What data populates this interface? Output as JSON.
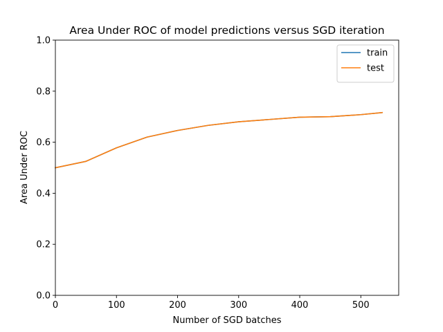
{
  "chart_data": {
    "type": "line",
    "title": "Area Under ROC of model predictions versus SGD iteration",
    "xlabel": "Number of SGD batches",
    "ylabel": "Area Under ROC",
    "xlim": [
      0,
      562
    ],
    "ylim": [
      0.0,
      1.0
    ],
    "xticks": [
      0,
      100,
      200,
      300,
      400,
      500
    ],
    "yticks": [
      0.0,
      0.2,
      0.4,
      0.6,
      0.8,
      1.0
    ],
    "xtick_labels": [
      "0",
      "100",
      "200",
      "300",
      "400",
      "500"
    ],
    "ytick_labels": [
      "0.0",
      "0.2",
      "0.4",
      "0.6",
      "0.8",
      "1.0"
    ],
    "grid": false,
    "legend_position": "top-right",
    "series": [
      {
        "name": "train",
        "color": "#1f77b4",
        "x": [
          0,
          50,
          100,
          150,
          200,
          250,
          300,
          350,
          400,
          450,
          500,
          535
        ],
        "y": [
          0.5,
          0.525,
          0.578,
          0.62,
          0.646,
          0.666,
          0.68,
          0.689,
          0.698,
          0.7,
          0.708,
          0.716
        ]
      },
      {
        "name": "test",
        "color": "#ff7f0e",
        "x": [
          0,
          50,
          100,
          150,
          200,
          250,
          300,
          350,
          400,
          450,
          500,
          535
        ],
        "y": [
          0.5,
          0.525,
          0.578,
          0.62,
          0.646,
          0.666,
          0.68,
          0.689,
          0.698,
          0.7,
          0.708,
          0.716
        ]
      }
    ]
  }
}
